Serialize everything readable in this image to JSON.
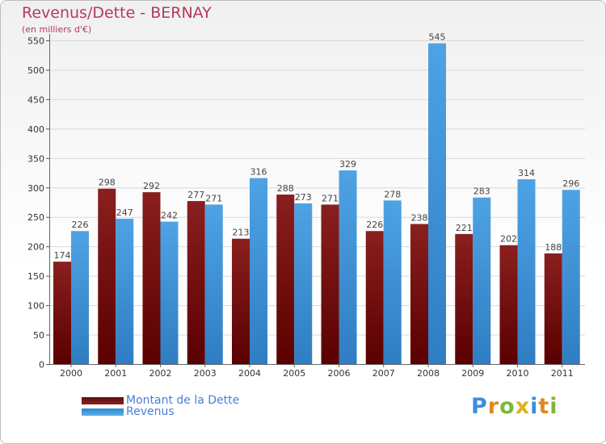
{
  "header": {
    "title": "Revenus/Dette - BERNAY",
    "subtitle": "(en milliers d'€)"
  },
  "colors": {
    "title": "#b53a5a",
    "debt": "#8a1f1f",
    "revenue": "#4ea3e4",
    "grid": "#d8d8d8",
    "legend_text": "#4a7ed8"
  },
  "chart_data": {
    "type": "bar",
    "title": "Revenus/Dette - BERNAY",
    "ylabel": "(en milliers d'€)",
    "ylim": [
      0,
      550
    ],
    "yticks": [
      0,
      50,
      100,
      150,
      200,
      250,
      300,
      350,
      400,
      450,
      500,
      550
    ],
    "grid": true,
    "categories": [
      "2000",
      "2001",
      "2002",
      "2003",
      "2004",
      "2005",
      "2006",
      "2007",
      "2008",
      "2009",
      "2010",
      "2011"
    ],
    "series": [
      {
        "name": "Montant de la Dette",
        "values": [
          174,
          298,
          292,
          277,
          213,
          288,
          271,
          226,
          238,
          221,
          202,
          188
        ]
      },
      {
        "name": "Revenus",
        "values": [
          226,
          247,
          242,
          271,
          316,
          273,
          329,
          278,
          545,
          283,
          314,
          296
        ]
      }
    ],
    "legend_position": "bottom-left"
  },
  "legend": {
    "items": [
      {
        "label": "Montant de la Dette"
      },
      {
        "label": "Revenus"
      }
    ]
  },
  "logo": {
    "letters": [
      "P",
      "r",
      "o",
      "x",
      "i",
      "t",
      "i"
    ]
  }
}
